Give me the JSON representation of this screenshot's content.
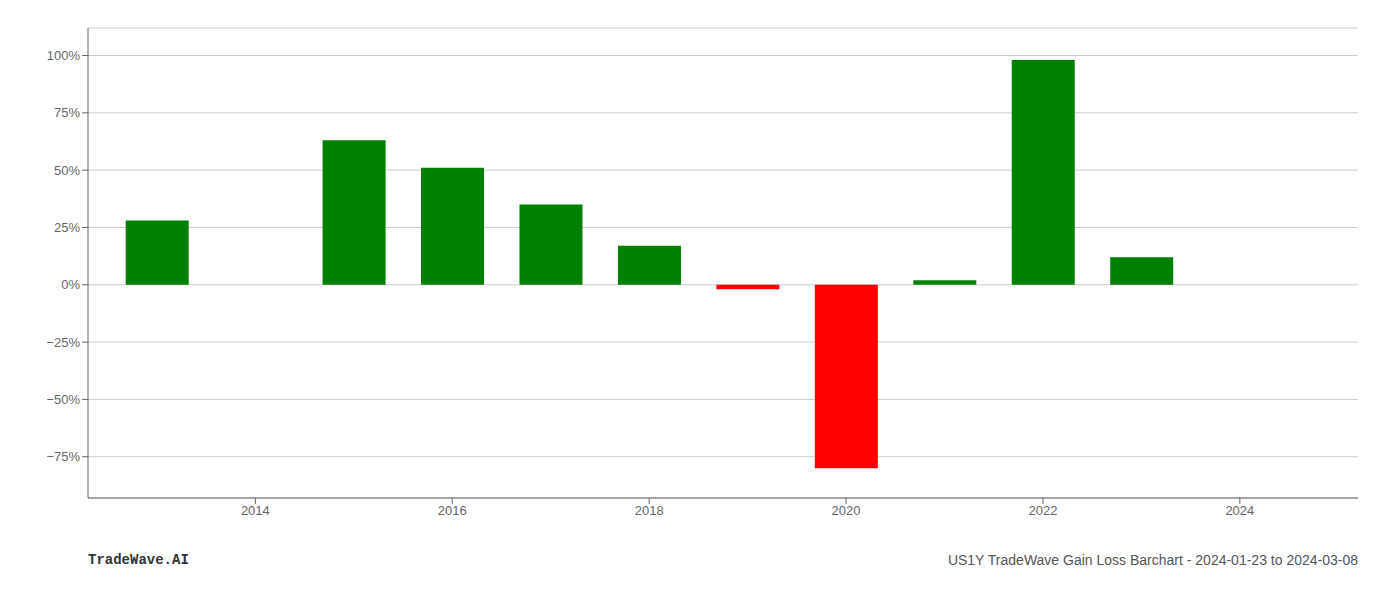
{
  "chart_data": {
    "type": "bar",
    "title": "US1Y TradeWave Gain Loss Barchart - 2024-01-23 to 2024-03-08",
    "annotations": [
      "TradeWave.AI"
    ],
    "x": [
      2013,
      2015,
      2016,
      2017,
      2018,
      2019,
      2020,
      2021,
      2022,
      2023
    ],
    "values": [
      0.28,
      0.63,
      0.51,
      0.35,
      0.17,
      -0.02,
      -0.8,
      0.02,
      0.98,
      0.12
    ],
    "colors": [
      "#008000",
      "#008000",
      "#008000",
      "#008000",
      "#008000",
      "#ff0000",
      "#ff0000",
      "#008000",
      "#008000",
      "#008000"
    ],
    "xlim": [
      2012.3,
      2025.2
    ],
    "ylim": [
      -0.93,
      1.12
    ],
    "xticks": [
      2014,
      2016,
      2018,
      2020,
      2022,
      2024
    ],
    "yticks": [
      {
        "value": -0.75,
        "label": "−75%"
      },
      {
        "value": -0.5,
        "label": "−50%"
      },
      {
        "value": -0.25,
        "label": "−25%"
      },
      {
        "value": 0.0,
        "label": "0%"
      },
      {
        "value": 0.25,
        "label": "25%"
      },
      {
        "value": 0.5,
        "label": "50%"
      },
      {
        "value": 0.75,
        "label": "75%"
      },
      {
        "value": 1.0,
        "label": "100%"
      }
    ],
    "grid": true
  }
}
